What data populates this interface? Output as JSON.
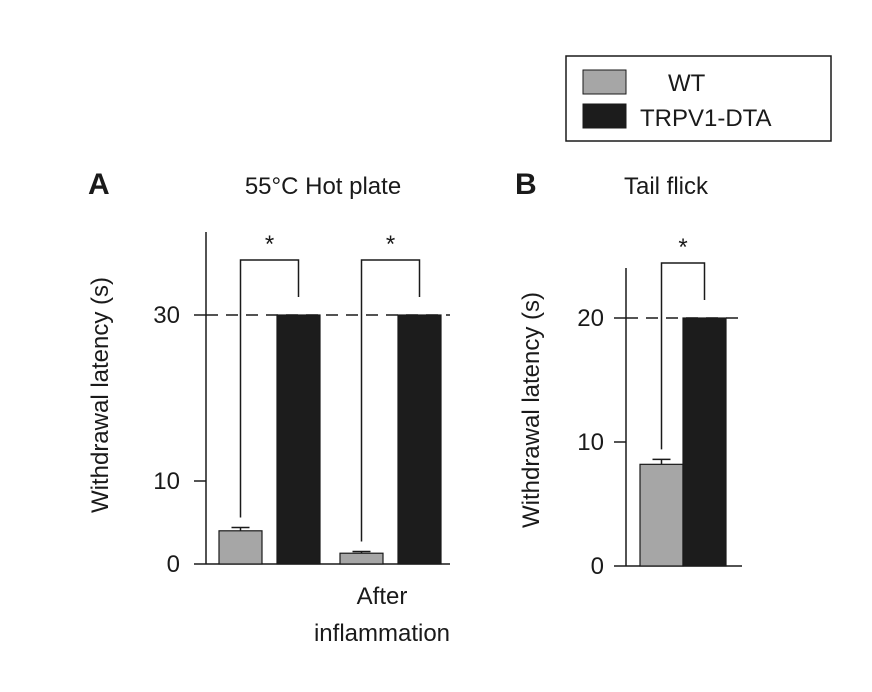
{
  "legend": {
    "entries": [
      {
        "label": "WT",
        "color": "#a6a6a6"
      },
      {
        "label": "TRPV1-DTA",
        "color": "#1c1c1c"
      }
    ]
  },
  "chart_data": [
    {
      "type": "bar",
      "panel_letter": "A",
      "title": "55°C Hot plate",
      "ylabel": "Withdrawal latency (s)",
      "xlabel": "",
      "ylim": [
        0,
        40
      ],
      "yticks": [
        0,
        10,
        30
      ],
      "categories": [
        "",
        "After inflammation"
      ],
      "category_label_lines": [
        "After",
        "inflammation"
      ],
      "cutoff_line": 30,
      "series": [
        {
          "name": "WT",
          "values": [
            4,
            1.3
          ],
          "errors": [
            0.4,
            0.2
          ]
        },
        {
          "name": "TRPV1-DTA",
          "values": [
            30,
            30
          ],
          "errors": [
            0,
            0
          ]
        }
      ],
      "significance": [
        "*",
        "*"
      ]
    },
    {
      "type": "bar",
      "panel_letter": "B",
      "title": "Tail flick",
      "ylabel": "Withdrawal latency (s)",
      "xlabel": "",
      "ylim": [
        0,
        24
      ],
      "yticks": [
        0,
        10,
        20
      ],
      "categories": [
        ""
      ],
      "cutoff_line": 20,
      "series": [
        {
          "name": "WT",
          "values": [
            8.2
          ],
          "errors": [
            0.4
          ]
        },
        {
          "name": "TRPV1-DTA",
          "values": [
            20
          ],
          "errors": [
            0
          ]
        }
      ],
      "significance": [
        "*"
      ]
    }
  ]
}
